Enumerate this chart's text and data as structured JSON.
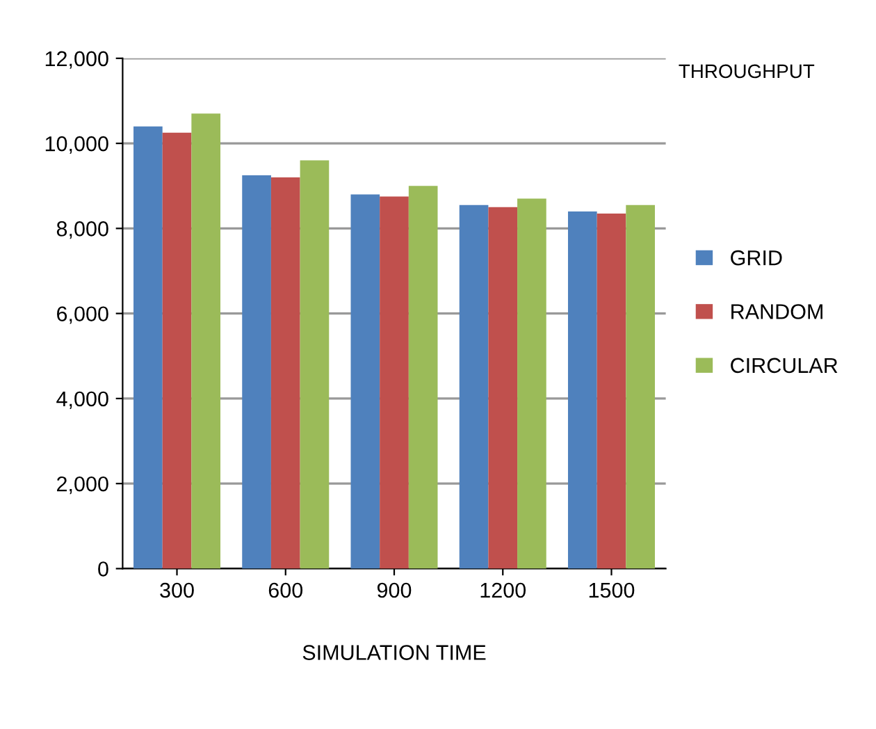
{
  "chart_data": {
    "type": "bar",
    "title": "THROUGHPUT",
    "xlabel": "SIMULATION TIME",
    "categories": [
      "300",
      "600",
      "900",
      "1200",
      "1500"
    ],
    "series": [
      {
        "name": "GRID",
        "color": "#4f81bd",
        "values": [
          10400,
          9250,
          8800,
          8550,
          8400
        ]
      },
      {
        "name": "RANDOM",
        "color": "#c0504d",
        "values": [
          10250,
          9200,
          8750,
          8500,
          8350
        ]
      },
      {
        "name": "CIRCULAR",
        "color": "#9bbb59",
        "values": [
          10700,
          9600,
          9000,
          8700,
          8550
        ]
      }
    ],
    "ylim": [
      0,
      12000
    ],
    "yticks": [
      {
        "value": 0,
        "label": "0"
      },
      {
        "value": 2000,
        "label": "2,000"
      },
      {
        "value": 4000,
        "label": "4,000"
      },
      {
        "value": 6000,
        "label": "6,000"
      },
      {
        "value": 8000,
        "label": "8,000"
      },
      {
        "value": 10000,
        "label": "10,000"
      },
      {
        "value": 12000,
        "label": "12,000"
      }
    ],
    "grid": "y",
    "legend": "right"
  }
}
